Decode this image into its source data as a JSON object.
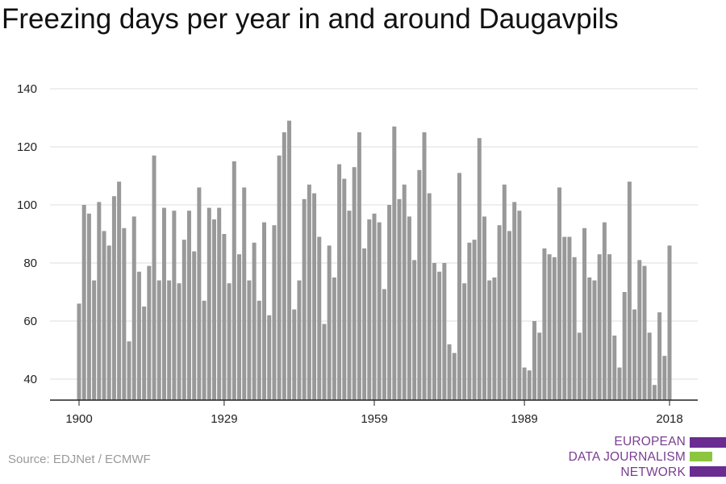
{
  "chart_data": {
    "type": "bar",
    "title": "Freezing days per year in and around Daugavpils",
    "xlabel": "",
    "ylabel": "",
    "ylim": [
      33,
      140
    ],
    "yticks": [
      40,
      60,
      80,
      100,
      120,
      140
    ],
    "xticks": [
      1900,
      1929,
      1959,
      1989,
      2018
    ],
    "grid": true,
    "bar_color": "#999999",
    "x": [
      1900,
      1901,
      1902,
      1903,
      1904,
      1905,
      1906,
      1907,
      1908,
      1909,
      1910,
      1911,
      1912,
      1913,
      1914,
      1915,
      1916,
      1917,
      1918,
      1919,
      1920,
      1921,
      1922,
      1923,
      1924,
      1925,
      1926,
      1927,
      1928,
      1929,
      1930,
      1931,
      1932,
      1933,
      1934,
      1935,
      1936,
      1937,
      1938,
      1939,
      1940,
      1941,
      1942,
      1943,
      1944,
      1945,
      1946,
      1947,
      1948,
      1949,
      1950,
      1951,
      1952,
      1953,
      1954,
      1955,
      1956,
      1957,
      1958,
      1959,
      1960,
      1961,
      1962,
      1963,
      1964,
      1965,
      1966,
      1967,
      1968,
      1969,
      1970,
      1971,
      1972,
      1973,
      1974,
      1975,
      1976,
      1977,
      1978,
      1979,
      1980,
      1981,
      1982,
      1983,
      1984,
      1985,
      1986,
      1987,
      1988,
      1989,
      1990,
      1991,
      1992,
      1993,
      1994,
      1995,
      1996,
      1997,
      1998,
      1999,
      2000,
      2001,
      2002,
      2003,
      2004,
      2005,
      2006,
      2007,
      2008,
      2009,
      2010,
      2011,
      2012,
      2013,
      2014,
      2015,
      2016,
      2017,
      2018
    ],
    "values": [
      66,
      100,
      97,
      74,
      101,
      91,
      86,
      103,
      108,
      92,
      53,
      96,
      77,
      65,
      79,
      117,
      74,
      99,
      74,
      98,
      73,
      88,
      98,
      84,
      106,
      67,
      99,
      95,
      99,
      90,
      73,
      115,
      83,
      106,
      74,
      87,
      67,
      94,
      62,
      93,
      117,
      125,
      129,
      64,
      74,
      102,
      107,
      104,
      89,
      59,
      86,
      75,
      114,
      109,
      98,
      113,
      125,
      85,
      95,
      97,
      94,
      71,
      100,
      127,
      102,
      107,
      96,
      81,
      112,
      125,
      104,
      80,
      77,
      80,
      52,
      49,
      111,
      73,
      87,
      88,
      123,
      96,
      74,
      75,
      93,
      107,
      91,
      101,
      98,
      44,
      43,
      60,
      56,
      85,
      83,
      82,
      106,
      89,
      89,
      82,
      56,
      92,
      75,
      74,
      83,
      94,
      83,
      55,
      44,
      70,
      108,
      64,
      81,
      79,
      56,
      38,
      63,
      48,
      86
    ]
  },
  "source": "Source: EDJNet / ECMWF",
  "logo": {
    "lines": [
      "EUROPEAN",
      "DATA JOURNALISM",
      "NETWORK"
    ],
    "colors": [
      "#6a2c91",
      "#8cc63f",
      "#6a2c91"
    ]
  }
}
